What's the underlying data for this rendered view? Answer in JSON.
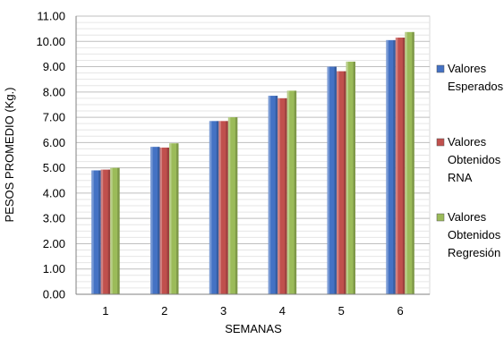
{
  "chart_data": {
    "type": "bar",
    "title": "",
    "xlabel": "SEMANAS",
    "ylabel": "PESOS PROMEDIO (Kg.)",
    "categories": [
      "1",
      "2",
      "3",
      "4",
      "5",
      "6"
    ],
    "ylim": [
      0,
      11
    ],
    "yticks": [
      "0.00",
      "1.00",
      "2.00",
      "3.00",
      "4.00",
      "5.00",
      "6.00",
      "7.00",
      "8.00",
      "9.00",
      "10.00",
      "11.00"
    ],
    "grid": true,
    "legend_position": "right",
    "series": [
      {
        "name": "Valores Esperados",
        "legend_lines": [
          "Valores",
          "Esperados"
        ],
        "color": "#4472C4",
        "values": [
          4.9,
          5.83,
          6.85,
          7.85,
          9.0,
          10.05
        ]
      },
      {
        "name": "Valores Obtenidos RNA",
        "legend_lines": [
          "Valores",
          "Obtenidos",
          "RNA"
        ],
        "color": "#C0504D",
        "values": [
          4.93,
          5.8,
          6.85,
          7.75,
          8.82,
          10.15
        ]
      },
      {
        "name": "Valores Obtenidos Regresión",
        "legend_lines": [
          "Valores",
          "Obtenidos",
          "Regresión"
        ],
        "color": "#9BBB59",
        "values": [
          5.0,
          5.97,
          7.0,
          8.05,
          9.2,
          10.37
        ]
      }
    ]
  }
}
